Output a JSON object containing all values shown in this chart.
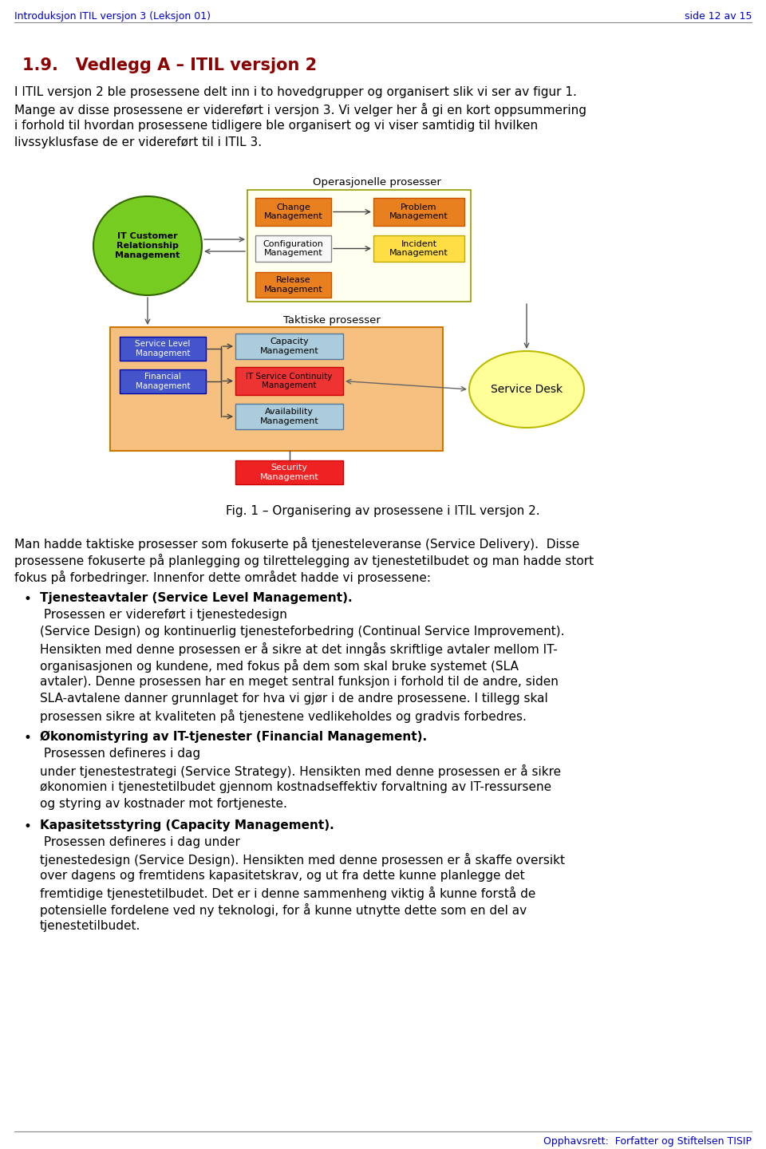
{
  "header_left": "Introduksjon ITIL versjon 3 (Leksjon 01)",
  "header_right": "side 12 av 15",
  "header_color": "#0000cc",
  "section_title": "1.9.   Vedlegg A – ITIL versjon 2",
  "section_title_color": "#8b0000",
  "fig_caption": "Fig. 1 – Organisering av prosessene i ITIL versjon 2.",
  "footer_text": "Opphavsrett:  Forfatter og Stiftelsen TISIP",
  "footer_color": "#0000cc",
  "background_color": "#ffffff",
  "intro_lines": [
    "I ITIL versjon 2 ble prosessene delt inn i to hovedgrupper og organisert slik vi ser av figur 1.",
    "Mange av disse prosessene er videreført i versjon 3. Vi velger her å gi en kort oppsummering",
    "i forhold til hvordan prosessene tidligere ble organisert og vi viser samtidig til hvilken",
    "livssyklusfase de er videreført til i ITIL 3."
  ],
  "body_lines_1": [
    "Man hadde taktiske prosesser som fokuserte på tjenesteleveranse (Service Delivery).  Disse",
    "prosessene fokuserte på planlegging og tilrettelegging av tjenestetilbudet og man hadde stort",
    "fokus på forbedringer. Innenfor dette området hadde vi prosessene:"
  ],
  "bullet1_title": "Tjenesteavtaler (Service Level Management).",
  "bullet1_lines": [
    " Prosessen er videreført i tjenestedesign",
    "(Service Design) og kontinuerlig tjenesteforbedring (Continual Service Improvement).",
    "Hensikten med denne prosessen er å sikre at det inngås skriftlige avtaler mellom IT-",
    "organisasjonen og kundene, med fokus på dem som skal bruke systemet (SLA",
    "avtaler). Denne prosessen har en meget sentral funksjon i forhold til de andre, siden",
    "SLA-avtalene danner grunnlaget for hva vi gjør i de andre prosessene. I tillegg skal",
    "prosessen sikre at kvaliteten på tjenestene vedlikeholdes og gradvis forbedres."
  ],
  "bullet2_title": "Økonomistyring av IT-tjenester (Financial Management).",
  "bullet2_lines": [
    " Prosessen defineres i dag",
    "under tjenestestrategi (Service Strategy). Hensikten med denne prosessen er å sikre",
    "økonomien i tjenestetilbudet gjennom kostnadseffektiv forvaltning av IT-ressursene",
    "og styring av kostnader mot fortjeneste."
  ],
  "bullet3_title": "Kapasitetsstyring (Capacity Management).",
  "bullet3_lines": [
    " Prosessen defineres i dag under",
    "tjenestedesign (Service Design). Hensikten med denne prosessen er å skaffe oversikt",
    "over dagens og fremtidens kapasitetskrav, og ut fra dette kunne planlegge det",
    "fremtidige tjenestetilbudet. Det er i denne sammenheng viktig å kunne forstå de",
    "potensielle fordelene ved ny teknologi, for å kunne utnytte dette som en del av",
    "tjenestetilbudet."
  ]
}
